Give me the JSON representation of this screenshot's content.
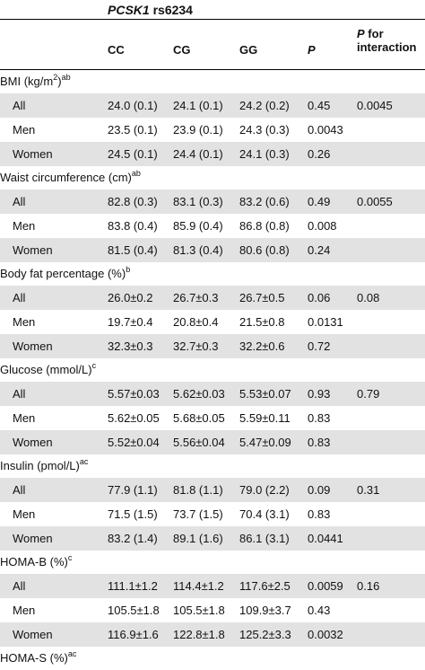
{
  "header": {
    "gene": "PCSK1",
    "snp": "rs6234",
    "col_cc": "CC",
    "col_cg": "CG",
    "col_gg": "GG",
    "col_p": "P",
    "col_pint_p": "P",
    "col_pint_rest1": "for",
    "col_pint_rest2": "interaction"
  },
  "groups": [
    {
      "name": "BMI (kg/m",
      "name_sup_inline": "2",
      "name_close": ")",
      "sup": "ab",
      "rows": [
        {
          "label": "All",
          "cc": "24.0 (0.1)",
          "cg": "24.1 (0.1)",
          "gg": "24.2 (0.2)",
          "p": "0.45",
          "pint": "0.0045"
        },
        {
          "label": "Men",
          "cc": "23.5 (0.1)",
          "cg": "23.9 (0.1)",
          "gg": "24.3 (0.3)",
          "p": "0.0043",
          "pint": ""
        },
        {
          "label": "Women",
          "cc": "24.5 (0.1)",
          "cg": "24.4 (0.1)",
          "gg": "24.1 (0.3)",
          "p": "0.26",
          "pint": ""
        }
      ]
    },
    {
      "name": "Waist circumference (cm)",
      "sup": "ab",
      "rows": [
        {
          "label": "All",
          "cc": "82.8 (0.3)",
          "cg": "83.1 (0.3)",
          "gg": "83.2 (0.6)",
          "p": "0.49",
          "pint": "0.0055"
        },
        {
          "label": "Men",
          "cc": "83.8 (0.4)",
          "cg": "85.9 (0.4)",
          "gg": "86.8 (0.8)",
          "p": "0.008",
          "pint": ""
        },
        {
          "label": "Women",
          "cc": "81.5 (0.4)",
          "cg": "81.3 (0.4)",
          "gg": "80.6 (0.8)",
          "p": "0.24",
          "pint": ""
        }
      ]
    },
    {
      "name": "Body fat percentage (%)",
      "sup": "b",
      "rows": [
        {
          "label": "All",
          "cc": "26.0±0.2",
          "cg": "26.7±0.3",
          "gg": "26.7±0.5",
          "p": "0.06",
          "pint": "0.08"
        },
        {
          "label": "Men",
          "cc": "19.7±0.4",
          "cg": "20.8±0.4",
          "gg": "21.5±0.8",
          "p": "0.0131",
          "pint": ""
        },
        {
          "label": "Women",
          "cc": "32.3±0.3",
          "cg": "32.7±0.3",
          "gg": "32.2±0.6",
          "p": "0.72",
          "pint": ""
        }
      ]
    },
    {
      "name": "Glucose (mmol/L)",
      "sup": "c",
      "rows": [
        {
          "label": "All",
          "cc": "5.57±0.03",
          "cg": "5.62±0.03",
          "gg": "5.53±0.07",
          "p": "0.93",
          "pint": "0.79"
        },
        {
          "label": "Men",
          "cc": "5.62±0.05",
          "cg": "5.68±0.05",
          "gg": "5.59±0.11",
          "p": "0.83",
          "pint": ""
        },
        {
          "label": "Women",
          "cc": "5.52±0.04",
          "cg": "5.56±0.04",
          "gg": "5.47±0.09",
          "p": "0.83",
          "pint": ""
        }
      ]
    },
    {
      "name": "Insulin (pmol/L)",
      "sup": "ac",
      "rows": [
        {
          "label": "All",
          "cc": "77.9 (1.1)",
          "cg": "81.8 (1.1)",
          "gg": "79.0 (2.2)",
          "p": "0.09",
          "pint": "0.31"
        },
        {
          "label": "Men",
          "cc": "71.5 (1.5)",
          "cg": "73.7 (1.5)",
          "gg": "70.4 (3.1)",
          "p": "0.83",
          "pint": ""
        },
        {
          "label": "Women",
          "cc": "83.2 (1.4)",
          "cg": "89.1 (1.6)",
          "gg": "86.1 (3.1)",
          "p": "0.0441",
          "pint": ""
        }
      ]
    },
    {
      "name": "HOMA-B (%)",
      "sup": "c",
      "rows": [
        {
          "label": "All",
          "cc": "111.1±1.2",
          "cg": "114.4±1.2",
          "gg": "117.6±2.5",
          "p": "0.0059",
          "pint": "0.16"
        },
        {
          "label": "Men",
          "cc": "105.5±1.8",
          "cg": "105.5±1.8",
          "gg": "109.9±3.7",
          "p": "0.43",
          "pint": ""
        },
        {
          "label": "Women",
          "cc": "116.9±1.6",
          "cg": "122.8±1.8",
          "gg": "125.2±3.3",
          "p": "0.0032",
          "pint": ""
        }
      ]
    },
    {
      "name": "HOMA-S (%)",
      "sup": "ac",
      "rows": []
    }
  ],
  "style": {
    "shade_color": "#e2e2e2",
    "rule_color": "#000000"
  }
}
